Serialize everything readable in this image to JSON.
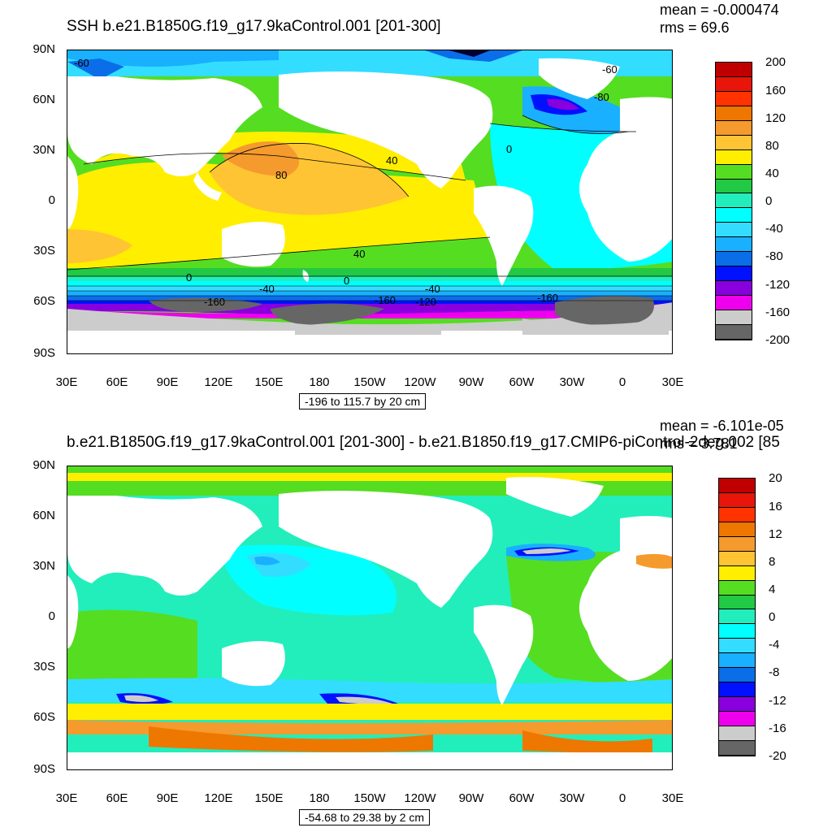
{
  "top": {
    "title": "SSH b.e21.B1850G.f19_g17.9kaControl.001 [201-300]",
    "mean": "mean = -0.000474",
    "rms": "rms = 69.6",
    "range": "-196 to 115.7 by 20 cm",
    "colorbar_labels": [
      "200",
      "160",
      "120",
      "80",
      "40",
      "0",
      "-40",
      "-80",
      "-120",
      "-160",
      "-200"
    ],
    "colorbar_colors": [
      "#c00000",
      "#e8150a",
      "#ff3300",
      "#ee7700",
      "#f59a2d",
      "#ffc433",
      "#ffee00",
      "#55dd22",
      "#22c944",
      "#22eebb",
      "#00ffff",
      "#33ddff",
      "#19b0ff",
      "#0a6ee8",
      "#0011ff",
      "#8800dd",
      "#ee00ee",
      "#cccccc",
      "#666666"
    ],
    "contour_labels": [
      "80",
      "40",
      "40",
      "0",
      "0",
      "0",
      "-40",
      "-40",
      "-160",
      "-160",
      "-160",
      "-120",
      "-60",
      "-60",
      "-80"
    ]
  },
  "bottom": {
    "title": "b.e21.B1850G.f19_g17.9kaControl.001 [201-300] - b.e21.B1850.f19_g17.CMIP6-piControl-2deg.002 [85",
    "mean": "mean = -6.101e-05",
    "rms": "rms = 3.781",
    "range": "-54.68 to 29.38 by 2 cm",
    "colorbar_labels": [
      "20",
      "16",
      "12",
      "8",
      "4",
      "0",
      "-4",
      "-8",
      "-12",
      "-16",
      "-20"
    ],
    "colorbar_colors": [
      "#c00000",
      "#e8150a",
      "#ff3300",
      "#ee7700",
      "#f59a2d",
      "#ffc433",
      "#ffee00",
      "#55dd22",
      "#22c944",
      "#22eebb",
      "#00ffff",
      "#33ddff",
      "#19b0ff",
      "#0a6ee8",
      "#0011ff",
      "#8800dd",
      "#ee00ee",
      "#cccccc",
      "#666666"
    ]
  },
  "axes": {
    "lat_labels": [
      "90N",
      "60N",
      "30N",
      "0",
      "30S",
      "60S",
      "90S"
    ],
    "lon_labels": [
      "30E",
      "60E",
      "90E",
      "120E",
      "150E",
      "180",
      "150W",
      "120W",
      "90W",
      "60W",
      "30W",
      "0",
      "30E"
    ]
  }
}
